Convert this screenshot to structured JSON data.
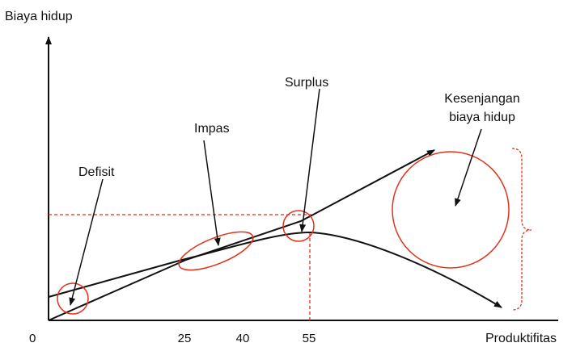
{
  "axes": {
    "y_label": "Biaya hidup",
    "x_label": "Produktifitas",
    "origin_label": "0",
    "x_ticks": [
      "25",
      "40",
      "55"
    ]
  },
  "annotations": {
    "defisit": "Defisit",
    "impas": "Impas",
    "surplus": "Surplus",
    "gap_line1": "Kesenjangan",
    "gap_line2": "biaya hidup"
  },
  "colors": {
    "line": "#111111",
    "highlight": "#e0321c"
  }
}
